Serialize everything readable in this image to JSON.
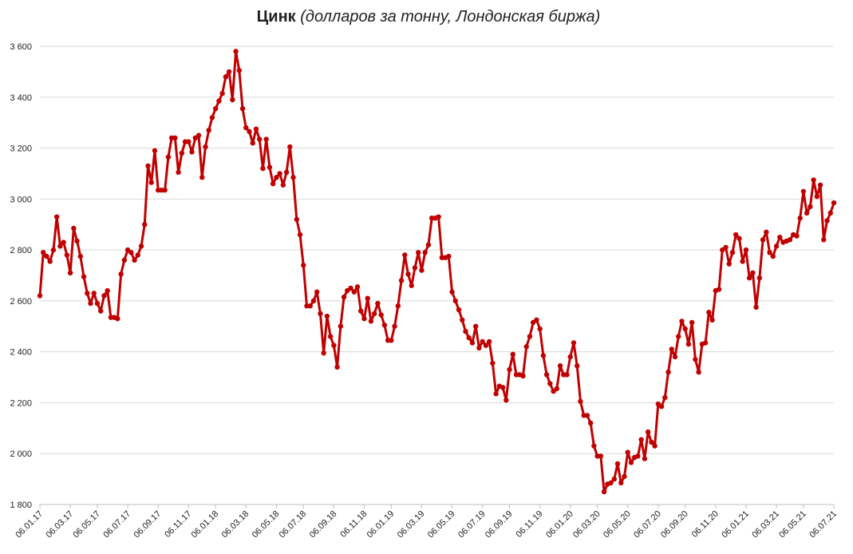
{
  "chart_data": {
    "type": "line",
    "title": "Цинк",
    "subtitle": "(долларов за тонну, Лондонская биржа)",
    "categories": [
      "06.01.17",
      null,
      null,
      null,
      null,
      null,
      null,
      null,
      null,
      "06.03.17",
      null,
      null,
      null,
      null,
      null,
      null,
      null,
      "06.05.17",
      null,
      null,
      null,
      null,
      null,
      null,
      null,
      null,
      "06.07.17",
      null,
      null,
      null,
      null,
      null,
      null,
      null,
      null,
      "06.09.17",
      null,
      null,
      null,
      null,
      null,
      null,
      null,
      null,
      "06.11.17",
      null,
      null,
      null,
      null,
      null,
      null,
      null,
      "06.01.18",
      null,
      null,
      null,
      null,
      null,
      null,
      null,
      null,
      "06.03.18",
      null,
      null,
      null,
      null,
      null,
      null,
      null,
      null,
      "06.05.18",
      null,
      null,
      null,
      null,
      null,
      null,
      null,
      "06.07.18",
      null,
      null,
      null,
      null,
      null,
      null,
      null,
      null,
      "06.09.18",
      null,
      null,
      null,
      null,
      null,
      null,
      null,
      null,
      "06.11.18",
      null,
      null,
      null,
      null,
      null,
      null,
      null,
      "06.01.19",
      null,
      null,
      null,
      null,
      null,
      null,
      null,
      null,
      "06.03.19",
      null,
      null,
      null,
      null,
      null,
      null,
      null,
      null,
      "06.05.19",
      null,
      null,
      null,
      null,
      null,
      null,
      null,
      null,
      "06.07.19",
      null,
      null,
      null,
      null,
      null,
      null,
      null,
      "06.09.19",
      null,
      null,
      null,
      null,
      null,
      null,
      null,
      null,
      "06.11.19",
      null,
      null,
      null,
      null,
      null,
      null,
      null,
      null,
      "06.01.20",
      null,
      null,
      null,
      null,
      null,
      null,
      null,
      "06.03.20",
      null,
      null,
      null,
      null,
      null,
      null,
      null,
      null,
      "06.05.20",
      null,
      null,
      null,
      null,
      null,
      null,
      null,
      null,
      "06.07.20",
      null,
      null,
      null,
      null,
      null,
      null,
      null,
      "06.09.20",
      null,
      null,
      null,
      null,
      null,
      null,
      null,
      null,
      "06.11.20",
      null,
      null,
      null,
      null,
      null,
      null,
      null,
      null,
      "06.01.21",
      null,
      null,
      null,
      null,
      null,
      null,
      null,
      null,
      "06.03.21",
      null,
      null,
      null,
      null,
      null,
      null,
      null,
      "06.05.21",
      null,
      null,
      null,
      null,
      null,
      null,
      null,
      null,
      "06.07.21"
    ],
    "series": [
      {
        "color": "#c00000",
        "values": [
          2620,
          2790,
          2775,
          2755,
          2800,
          2930,
          2815,
          2830,
          2780,
          2710,
          2885,
          2835,
          2775,
          2695,
          2630,
          2590,
          2630,
          2590,
          2560,
          2620,
          2640,
          2535,
          2535,
          2530,
          2705,
          2760,
          2800,
          2790,
          2760,
          2780,
          2815,
          2900,
          3130,
          3065,
          3190,
          3035,
          3035,
          3035,
          3165,
          3240,
          3240,
          3105,
          3180,
          3225,
          3225,
          3185,
          3240,
          3250,
          3085,
          3205,
          3270,
          3320,
          3355,
          3385,
          3415,
          3480,
          3500,
          3390,
          3580,
          3505,
          3355,
          3280,
          3265,
          3220,
          3275,
          3235,
          3120,
          3235,
          3125,
          3060,
          3085,
          3100,
          3055,
          3105,
          3205,
          3085,
          2920,
          2860,
          2740,
          2580,
          2580,
          2600,
          2635,
          2550,
          2395,
          2540,
          2460,
          2425,
          2340,
          2500,
          2615,
          2640,
          2650,
          2635,
          2655,
          2560,
          2530,
          2610,
          2520,
          2550,
          2590,
          2545,
          2505,
          2445,
          2445,
          2500,
          2580,
          2680,
          2780,
          2705,
          2660,
          2730,
          2790,
          2720,
          2790,
          2820,
          2925,
          2925,
          2930,
          2770,
          2770,
          2775,
          2635,
          2600,
          2565,
          2525,
          2480,
          2455,
          2435,
          2500,
          2415,
          2440,
          2425,
          2440,
          2355,
          2235,
          2265,
          2260,
          2210,
          2330,
          2390,
          2310,
          2310,
          2305,
          2420,
          2460,
          2515,
          2525,
          2490,
          2385,
          2310,
          2275,
          2245,
          2255,
          2345,
          2310,
          2310,
          2380,
          2435,
          2345,
          2205,
          2150,
          2150,
          2120,
          2030,
          1990,
          1990,
          1850,
          1880,
          1885,
          1900,
          1960,
          1885,
          1910,
          2005,
          1965,
          1985,
          1990,
          2055,
          1980,
          2085,
          2045,
          2030,
          2195,
          2185,
          2220,
          2320,
          2410,
          2380,
          2460,
          2520,
          2490,
          2430,
          2515,
          2370,
          2320,
          2430,
          2435,
          2555,
          2525,
          2640,
          2645,
          2800,
          2810,
          2745,
          2790,
          2860,
          2845,
          2755,
          2800,
          2690,
          2710,
          2575,
          2690,
          2840,
          2870,
          2790,
          2775,
          2815,
          2850,
          2830,
          2835,
          2840,
          2860,
          2855,
          2925,
          3030,
          2945,
          2970,
          3075,
          3010,
          3055,
          2840,
          2915,
          2945,
          2985
        ]
      }
    ],
    "ylim": [
      1800,
      3600
    ],
    "yticks": [
      {
        "value": 1800,
        "label": "1 800"
      },
      {
        "value": 2000,
        "label": "2 000"
      },
      {
        "value": 2200,
        "label": "2 200"
      },
      {
        "value": 2400,
        "label": "2 400"
      },
      {
        "value": 2600,
        "label": "2 600"
      },
      {
        "value": 2800,
        "label": "2 800"
      },
      {
        "value": 3000,
        "label": "3 000"
      },
      {
        "value": 3200,
        "label": "3 200"
      },
      {
        "value": 3400,
        "label": "3 400"
      },
      {
        "value": 3600,
        "label": "3 600"
      }
    ],
    "grid": true
  }
}
